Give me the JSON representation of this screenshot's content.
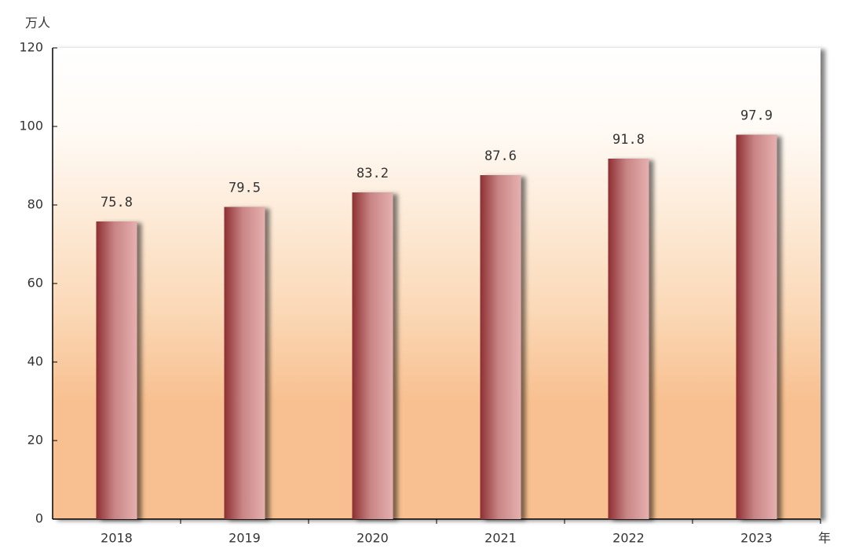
{
  "chart_data": {
    "type": "bar",
    "y_label": "万人",
    "x_label": "年",
    "categories": [
      "2018",
      "2019",
      "2020",
      "2021",
      "2022",
      "2023"
    ],
    "values": [
      75.8,
      79.5,
      83.2,
      87.6,
      91.8,
      97.9
    ],
    "color": "#e6b0b0",
    "ylim": [
      0,
      120
    ],
    "yticks": [
      0,
      20,
      40,
      60,
      80,
      100,
      120
    ]
  }
}
